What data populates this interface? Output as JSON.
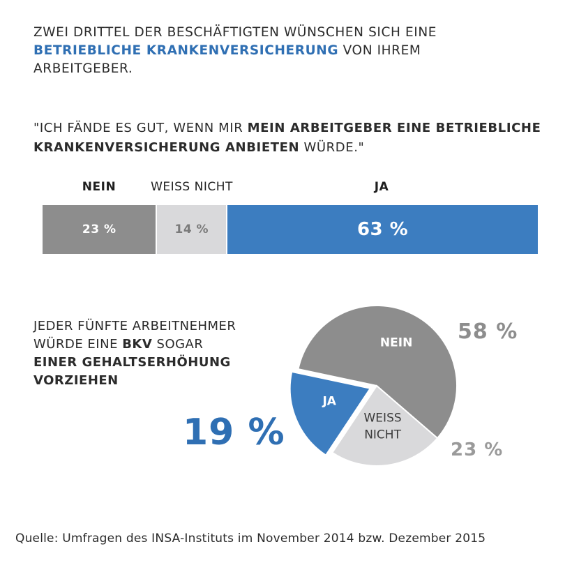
{
  "headline": {
    "line1": "ZWEI DRITTEL DER BESCHÄFTIGTEN WÜNSCHEN SICH EINE",
    "highlight": "BETRIEBLICHE KRANKENVERSICHERUNG",
    "rest": " VON IHREM ARBEITGEBER."
  },
  "quote": {
    "part1": "\"ICH FÄNDE ES GUT, WENN MIR ",
    "bold": "MEIN ARBEITGEBER EINE BETRIEBLICHE KRANKENVERSICHERUNG ANBIETEN",
    "part2": " WÜRDE.\""
  },
  "pie_intro": {
    "line1": "JEDER FÜNFTE ARBEITNEHMER",
    "line2a": "WÜRDE EINE ",
    "line2b": "BKV",
    "line2c": " SOGAR",
    "bold_line": "EINER GEHALTSERHÖHUNG VORZIEHEN"
  },
  "source": "Quelle: Umfragen des INSA-Instituts im November 2014 bzw. Dezember 2015",
  "chart_data": [
    {
      "type": "bar",
      "orientation": "horizontal-stacked",
      "categories": [
        "NEIN",
        "WEISS NICHT",
        "JA"
      ],
      "values": [
        23,
        14,
        63
      ],
      "value_labels": [
        "23 %",
        "14 %",
        "63 %"
      ],
      "colors": [
        "#8d8d8d",
        "#d9d9db",
        "#3c7dc0"
      ]
    },
    {
      "type": "pie",
      "categories": [
        "NEIN",
        "JA",
        "WEISS NICHT"
      ],
      "values": [
        58,
        19,
        23
      ],
      "value_labels": [
        "58 %",
        "19 %",
        "23 %"
      ],
      "slice_labels": [
        "NEIN",
        "JA",
        "WEISS\nNICHT"
      ],
      "exploded": "JA",
      "colors": [
        "#8d8d8d",
        "#3c7dc0",
        "#d9d9db"
      ]
    }
  ]
}
